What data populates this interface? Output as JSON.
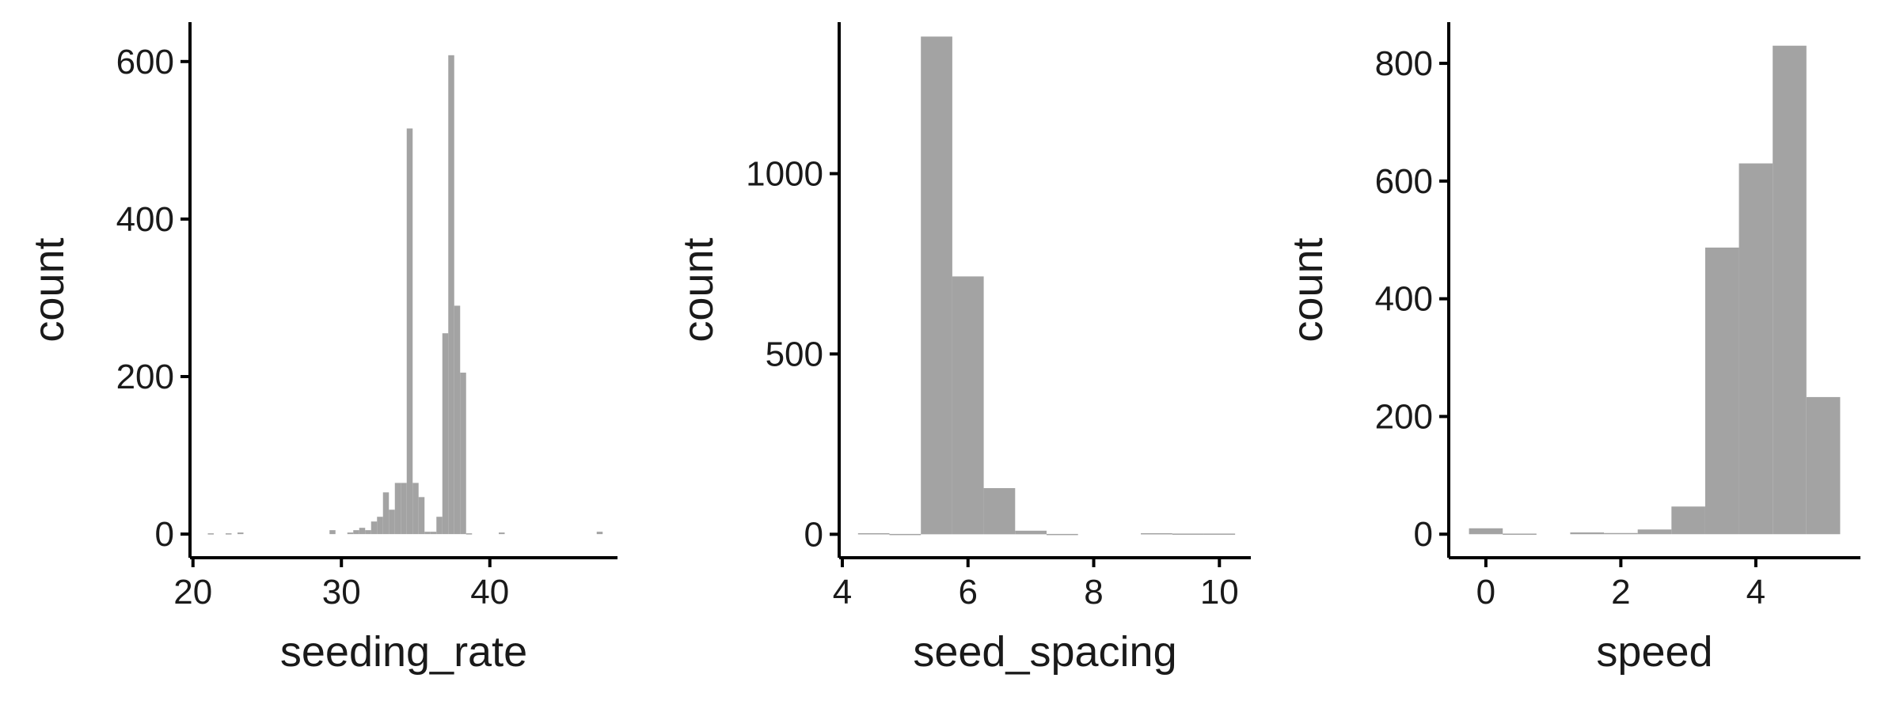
{
  "colors": {
    "bar": "#a3a3a3",
    "axis": "#000000",
    "background": "#ffffff"
  },
  "chart_data": [
    {
      "type": "histogram",
      "xlabel": "seeding_rate",
      "ylabel": "count",
      "xlim": [
        19.8,
        48.6
      ],
      "ylim": [
        -30,
        650
      ],
      "xticks": [
        20,
        30,
        40
      ],
      "yticks": [
        0,
        200,
        400,
        600
      ],
      "bin_width": 0.4,
      "bins": [
        {
          "x0": 21.0,
          "x1": 21.4,
          "count": 1
        },
        {
          "x0": 22.2,
          "x1": 22.6,
          "count": 1
        },
        {
          "x0": 23.0,
          "x1": 23.4,
          "count": 2
        },
        {
          "x0": 29.2,
          "x1": 29.6,
          "count": 5
        },
        {
          "x0": 30.4,
          "x1": 30.8,
          "count": 2
        },
        {
          "x0": 30.8,
          "x1": 31.2,
          "count": 5
        },
        {
          "x0": 31.2,
          "x1": 31.6,
          "count": 8
        },
        {
          "x0": 31.6,
          "x1": 32.0,
          "count": 5
        },
        {
          "x0": 32.0,
          "x1": 32.4,
          "count": 16
        },
        {
          "x0": 32.4,
          "x1": 32.8,
          "count": 22
        },
        {
          "x0": 32.8,
          "x1": 33.2,
          "count": 53
        },
        {
          "x0": 33.2,
          "x1": 33.6,
          "count": 31
        },
        {
          "x0": 33.6,
          "x1": 34.0,
          "count": 65
        },
        {
          "x0": 34.0,
          "x1": 34.4,
          "count": 65
        },
        {
          "x0": 34.4,
          "x1": 34.8,
          "count": 515
        },
        {
          "x0": 34.8,
          "x1": 35.2,
          "count": 65
        },
        {
          "x0": 35.2,
          "x1": 35.6,
          "count": 47
        },
        {
          "x0": 35.6,
          "x1": 36.0,
          "count": 3
        },
        {
          "x0": 36.0,
          "x1": 36.4,
          "count": 3
        },
        {
          "x0": 36.4,
          "x1": 36.8,
          "count": 22
        },
        {
          "x0": 36.8,
          "x1": 37.2,
          "count": 255
        },
        {
          "x0": 37.2,
          "x1": 37.6,
          "count": 608
        },
        {
          "x0": 37.6,
          "x1": 38.0,
          "count": 290
        },
        {
          "x0": 38.0,
          "x1": 38.4,
          "count": 205
        },
        {
          "x0": 38.4,
          "x1": 38.8,
          "count": 1
        },
        {
          "x0": 40.6,
          "x1": 41.0,
          "count": 2
        },
        {
          "x0": 47.2,
          "x1": 47.6,
          "count": 3
        }
      ]
    },
    {
      "type": "histogram",
      "xlabel": "seed_spacing",
      "ylabel": "count",
      "xlim": [
        3.95,
        10.5
      ],
      "ylim": [
        -65,
        1420
      ],
      "xticks": [
        4,
        6,
        8,
        10
      ],
      "yticks": [
        0,
        500,
        1000
      ],
      "bin_width": 0.5,
      "bins": [
        {
          "x0": 4.25,
          "x1": 4.75,
          "count": 3
        },
        {
          "x0": 4.75,
          "x1": 5.25,
          "count": 1
        },
        {
          "x0": 5.25,
          "x1": 5.75,
          "count": 1380
        },
        {
          "x0": 5.75,
          "x1": 6.25,
          "count": 715
        },
        {
          "x0": 6.25,
          "x1": 6.75,
          "count": 128
        },
        {
          "x0": 6.75,
          "x1": 7.25,
          "count": 10
        },
        {
          "x0": 7.25,
          "x1": 7.75,
          "count": 1
        },
        {
          "x0": 8.75,
          "x1": 9.25,
          "count": 3
        },
        {
          "x0": 9.25,
          "x1": 9.75,
          "count": 2
        },
        {
          "x0": 9.75,
          "x1": 10.25,
          "count": 2
        }
      ]
    },
    {
      "type": "histogram",
      "xlabel": "speed",
      "ylabel": "count",
      "xlim": [
        -0.55,
        5.55
      ],
      "ylim": [
        -40,
        870
      ],
      "xticks": [
        0,
        2,
        4
      ],
      "yticks": [
        0,
        200,
        400,
        600,
        800
      ],
      "bin_width": 0.5,
      "bins": [
        {
          "x0": -0.25,
          "x1": 0.25,
          "count": 10
        },
        {
          "x0": 0.25,
          "x1": 0.75,
          "count": 1
        },
        {
          "x0": 1.25,
          "x1": 1.75,
          "count": 3
        },
        {
          "x0": 1.75,
          "x1": 2.25,
          "count": 2
        },
        {
          "x0": 2.25,
          "x1": 2.75,
          "count": 8
        },
        {
          "x0": 2.75,
          "x1": 3.25,
          "count": 47
        },
        {
          "x0": 3.25,
          "x1": 3.75,
          "count": 487
        },
        {
          "x0": 3.75,
          "x1": 4.25,
          "count": 630
        },
        {
          "x0": 4.25,
          "x1": 4.75,
          "count": 830
        },
        {
          "x0": 4.75,
          "x1": 5.25,
          "count": 233
        }
      ]
    }
  ]
}
